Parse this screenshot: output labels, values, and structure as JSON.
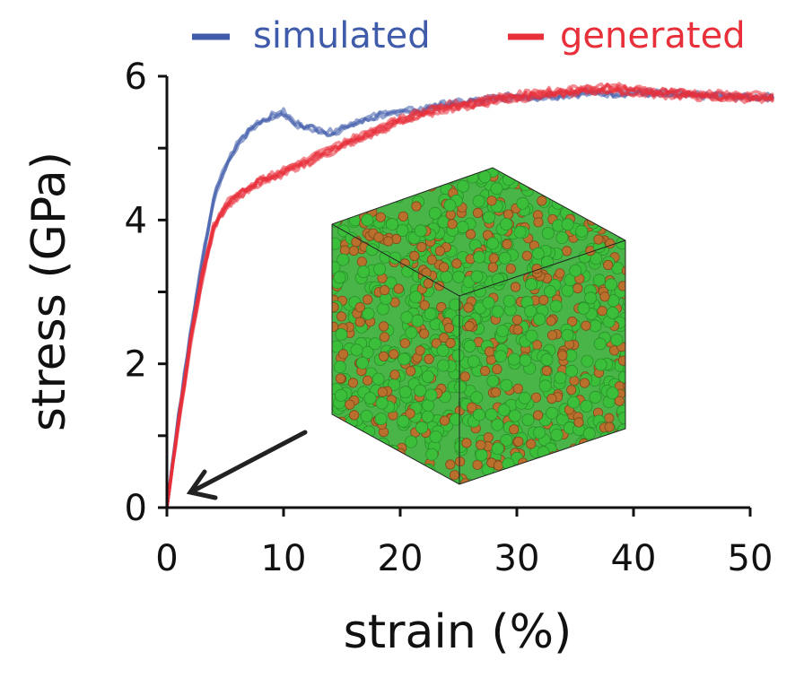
{
  "chart_data": {
    "type": "line",
    "xlabel": "strain (%)",
    "ylabel": "stress (GPa)",
    "xlim": [
      0,
      52
    ],
    "ylim": [
      0,
      6
    ],
    "xticks": [
      0,
      10,
      20,
      30,
      40,
      50
    ],
    "yticks": [
      0,
      2,
      4,
      6
    ],
    "legend_position": "top",
    "grid": false,
    "series": [
      {
        "name": "simulated",
        "color": "#3f5ba9",
        "x": [
          0,
          1,
          2,
          3,
          4,
          5,
          6,
          7,
          8,
          9,
          10,
          11,
          12,
          13,
          14,
          15,
          16,
          17,
          18,
          19,
          20,
          22,
          24,
          26,
          28,
          30,
          32,
          34,
          36,
          38,
          40,
          42,
          44,
          46,
          48,
          50,
          52
        ],
        "values": [
          0,
          1.3,
          2.4,
          3.4,
          4.3,
          4.75,
          5.05,
          5.25,
          5.38,
          5.45,
          5.5,
          5.35,
          5.3,
          5.25,
          5.22,
          5.28,
          5.35,
          5.4,
          5.45,
          5.5,
          5.5,
          5.55,
          5.62,
          5.65,
          5.7,
          5.73,
          5.72,
          5.75,
          5.78,
          5.77,
          5.78,
          5.77,
          5.75,
          5.74,
          5.73,
          5.72,
          5.72
        ]
      },
      {
        "name": "generated",
        "color": "#e8303a",
        "x": [
          0,
          1,
          2,
          3,
          4,
          5,
          6,
          7,
          8,
          9,
          10,
          11,
          12,
          13,
          14,
          15,
          16,
          17,
          18,
          19,
          20,
          22,
          24,
          26,
          28,
          30,
          32,
          34,
          36,
          38,
          40,
          42,
          44,
          46,
          48,
          50,
          52
        ],
        "values": [
          0,
          1.2,
          2.3,
          3.2,
          3.9,
          4.2,
          4.35,
          4.45,
          4.55,
          4.6,
          4.68,
          4.75,
          4.82,
          4.9,
          4.97,
          5.05,
          5.12,
          5.18,
          5.25,
          5.32,
          5.4,
          5.5,
          5.58,
          5.62,
          5.68,
          5.72,
          5.76,
          5.79,
          5.82,
          5.84,
          5.8,
          5.78,
          5.76,
          5.74,
          5.73,
          5.72,
          5.7
        ]
      }
    ]
  },
  "inset": {
    "description_icon": "atomic-structure-cube-icon",
    "atom_colors": [
      "#3bbf3b",
      "#b9702c"
    ]
  }
}
